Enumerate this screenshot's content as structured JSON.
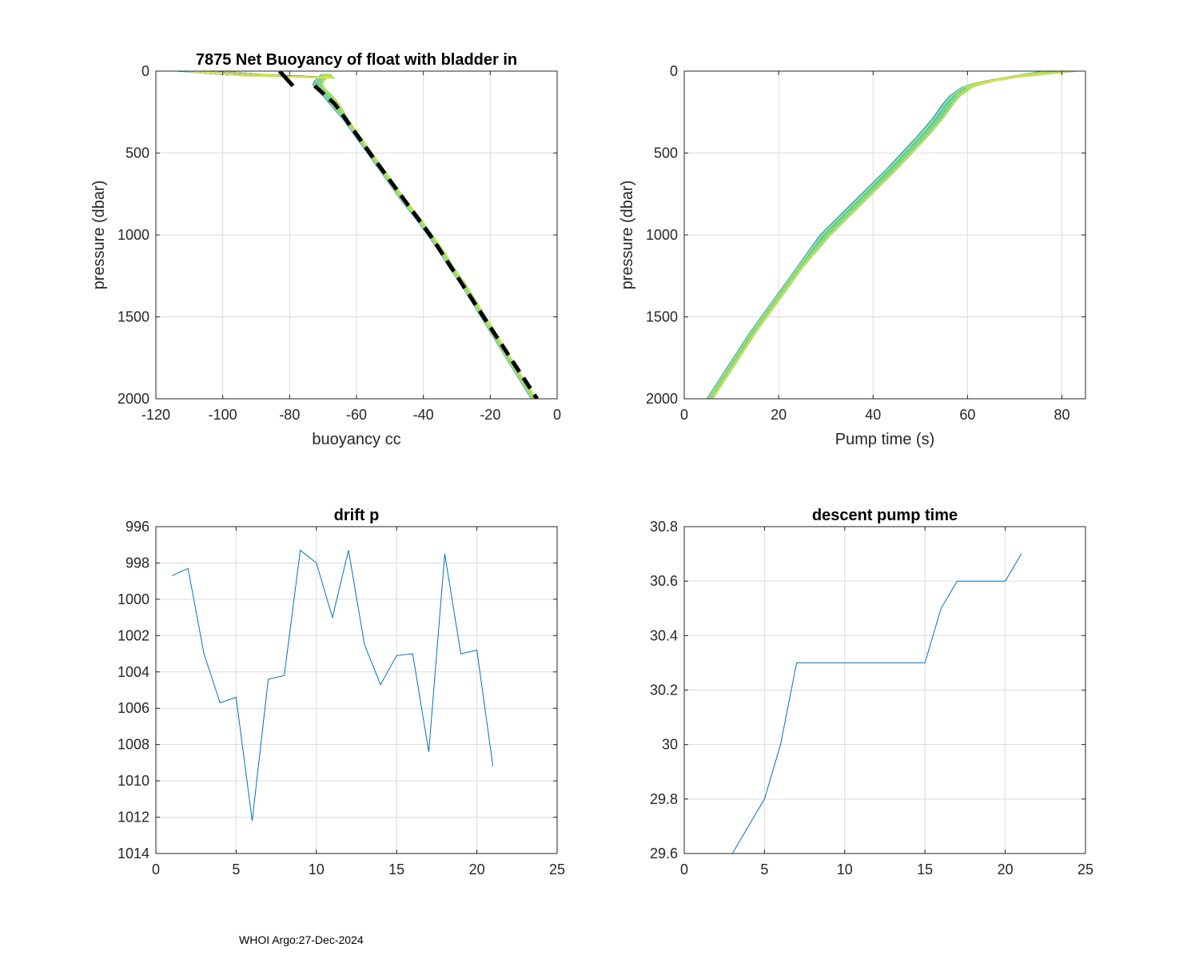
{
  "footer": "WHOI Argo:27-Dec-2024",
  "chart_data": [
    {
      "id": "buoyancy",
      "type": "line",
      "title": "7875 Net Buoyancy of float with bladder in",
      "xlabel": "buoyancy cc",
      "ylabel": "pressure (dbar)",
      "xlim": [
        -120,
        0
      ],
      "ylim": [
        0,
        2000
      ],
      "y_reversed": true,
      "xticks": [
        -120,
        -100,
        -80,
        -60,
        -40,
        -20,
        0
      ],
      "xtick_labels": [
        "-120",
        "-100",
        "-80",
        "-60",
        "-40",
        "-20",
        "0"
      ],
      "yticks": [
        0,
        500,
        1000,
        1500,
        2000
      ],
      "ytick_labels": [
        "0",
        "500",
        "1000",
        "1500",
        "2000"
      ],
      "profile_colormap": [
        "#1a1adf",
        "#2a5fe6",
        "#1e90ff",
        "#00b0f0",
        "#20c9e0",
        "#40d8c0",
        "#80e080",
        "#c8e040",
        "#f0e030"
      ],
      "profile_count": 21,
      "base_profile": {
        "p": [
          0,
          20,
          40,
          60,
          80,
          100,
          150,
          200,
          300,
          400,
          500,
          600,
          700,
          800,
          900,
          1000,
          1100,
          1200,
          1300,
          1400,
          1500,
          1600,
          1700,
          1800,
          1900,
          2000
        ],
        "x": [
          -68,
          -69,
          -70,
          -71,
          -71.5,
          -71,
          -68.5,
          -66.5,
          -63,
          -59.5,
          -56,
          -52.5,
          -49,
          -45.5,
          -41.5,
          -38,
          -34.5,
          -31.5,
          -28,
          -25,
          -22,
          -19,
          -16,
          -13,
          -10,
          -7
        ]
      },
      "surface_tail_x": [
        -85,
        -110
      ],
      "fit_line": {
        "p": [
          0,
          90
        ],
        "x": [
          -83,
          -79
        ]
      },
      "fit_line2": {
        "p": [
          90,
          200,
          500,
          1000,
          1500,
          2000
        ],
        "x": [
          -72.5,
          -66.5,
          -56,
          -38,
          -22,
          -6
        ]
      },
      "fit_color": "#000000"
    },
    {
      "id": "pumptime",
      "type": "line",
      "title": "",
      "xlabel": "Pump time (s)",
      "ylabel": "pressure (dbar)",
      "xlim": [
        0,
        85
      ],
      "ylim": [
        0,
        2000
      ],
      "y_reversed": true,
      "xticks": [
        0,
        20,
        40,
        60,
        80
      ],
      "xtick_labels": [
        "0",
        "20",
        "40",
        "60",
        "80"
      ],
      "yticks": [
        0,
        500,
        1000,
        1500,
        2000
      ],
      "ytick_labels": [
        "0",
        "500",
        "1000",
        "1500",
        "2000"
      ],
      "profile_colormap": [
        "#1a1adf",
        "#2a5fe6",
        "#1e90ff",
        "#00b0f0",
        "#20c9e0",
        "#40d8c0",
        "#80e080",
        "#c8e040",
        "#f0e030"
      ],
      "profile_count": 21,
      "base_profile": {
        "p": [
          2000,
          1800,
          1600,
          1400,
          1200,
          1000,
          800,
          600,
          400,
          300,
          200,
          150,
          100,
          80,
          60,
          40,
          20,
          0
        ],
        "x": [
          5.5,
          10,
          14.5,
          19.5,
          24.5,
          30,
          37,
          44,
          50.5,
          53.5,
          56,
          57.5,
          60,
          62,
          65,
          69,
          74,
          80
        ]
      }
    },
    {
      "id": "drift",
      "type": "line",
      "title": "drift p",
      "xlabel": "",
      "ylabel": "",
      "xlim": [
        0,
        25
      ],
      "ylim": [
        996,
        1014
      ],
      "y_reversed": true,
      "xticks": [
        0,
        5,
        10,
        15,
        20,
        25
      ],
      "xtick_labels": [
        "0",
        "5",
        "10",
        "15",
        "20",
        "25"
      ],
      "yticks": [
        996,
        998,
        1000,
        1002,
        1004,
        1006,
        1008,
        1010,
        1012,
        1014
      ],
      "ytick_labels": [
        "996",
        "998",
        "1000",
        "1002",
        "1004",
        "1006",
        "1008",
        "1010",
        "1012",
        "1014"
      ],
      "series": [
        {
          "name": "drift p",
          "color": "#0072bd",
          "x": [
            1,
            2,
            3,
            4,
            5,
            6,
            7,
            8,
            9,
            10,
            11,
            12,
            13,
            14,
            15,
            16,
            17,
            18,
            19,
            20,
            21
          ],
          "y": [
            998.7,
            998.3,
            1003.0,
            1005.7,
            1005.4,
            1012.2,
            1004.4,
            1004.2,
            997.3,
            998.0,
            1001.0,
            997.3,
            1002.5,
            1004.7,
            1003.1,
            1003.0,
            1008.4,
            997.5,
            1003.0,
            1002.8,
            1009.2
          ]
        }
      ]
    },
    {
      "id": "descent",
      "type": "line",
      "title": "descent pump time",
      "xlabel": "",
      "ylabel": "",
      "xlim": [
        0,
        25
      ],
      "ylim": [
        29.6,
        30.8
      ],
      "y_reversed": false,
      "xticks": [
        0,
        5,
        10,
        15,
        20,
        25
      ],
      "xtick_labels": [
        "0",
        "5",
        "10",
        "15",
        "20",
        "25"
      ],
      "yticks": [
        29.6,
        29.8,
        30,
        30.2,
        30.4,
        30.6,
        30.8
      ],
      "ytick_labels": [
        "29.6",
        "29.8",
        "30",
        "30.2",
        "30.4",
        "30.6",
        "30.8"
      ],
      "series": [
        {
          "name": "descent pump time",
          "color": "#0072bd",
          "x": [
            1,
            2,
            3,
            4,
            5,
            6,
            7,
            8,
            9,
            10,
            11,
            12,
            13,
            14,
            15,
            16,
            17,
            18,
            19,
            20,
            21
          ],
          "y": [
            29.6,
            29.6,
            29.6,
            29.7,
            29.8,
            30.0,
            30.3,
            30.3,
            30.3,
            30.3,
            30.3,
            30.3,
            30.3,
            30.3,
            30.3,
            30.5,
            30.6,
            30.6,
            30.6,
            30.6,
            30.7
          ]
        }
      ]
    }
  ]
}
